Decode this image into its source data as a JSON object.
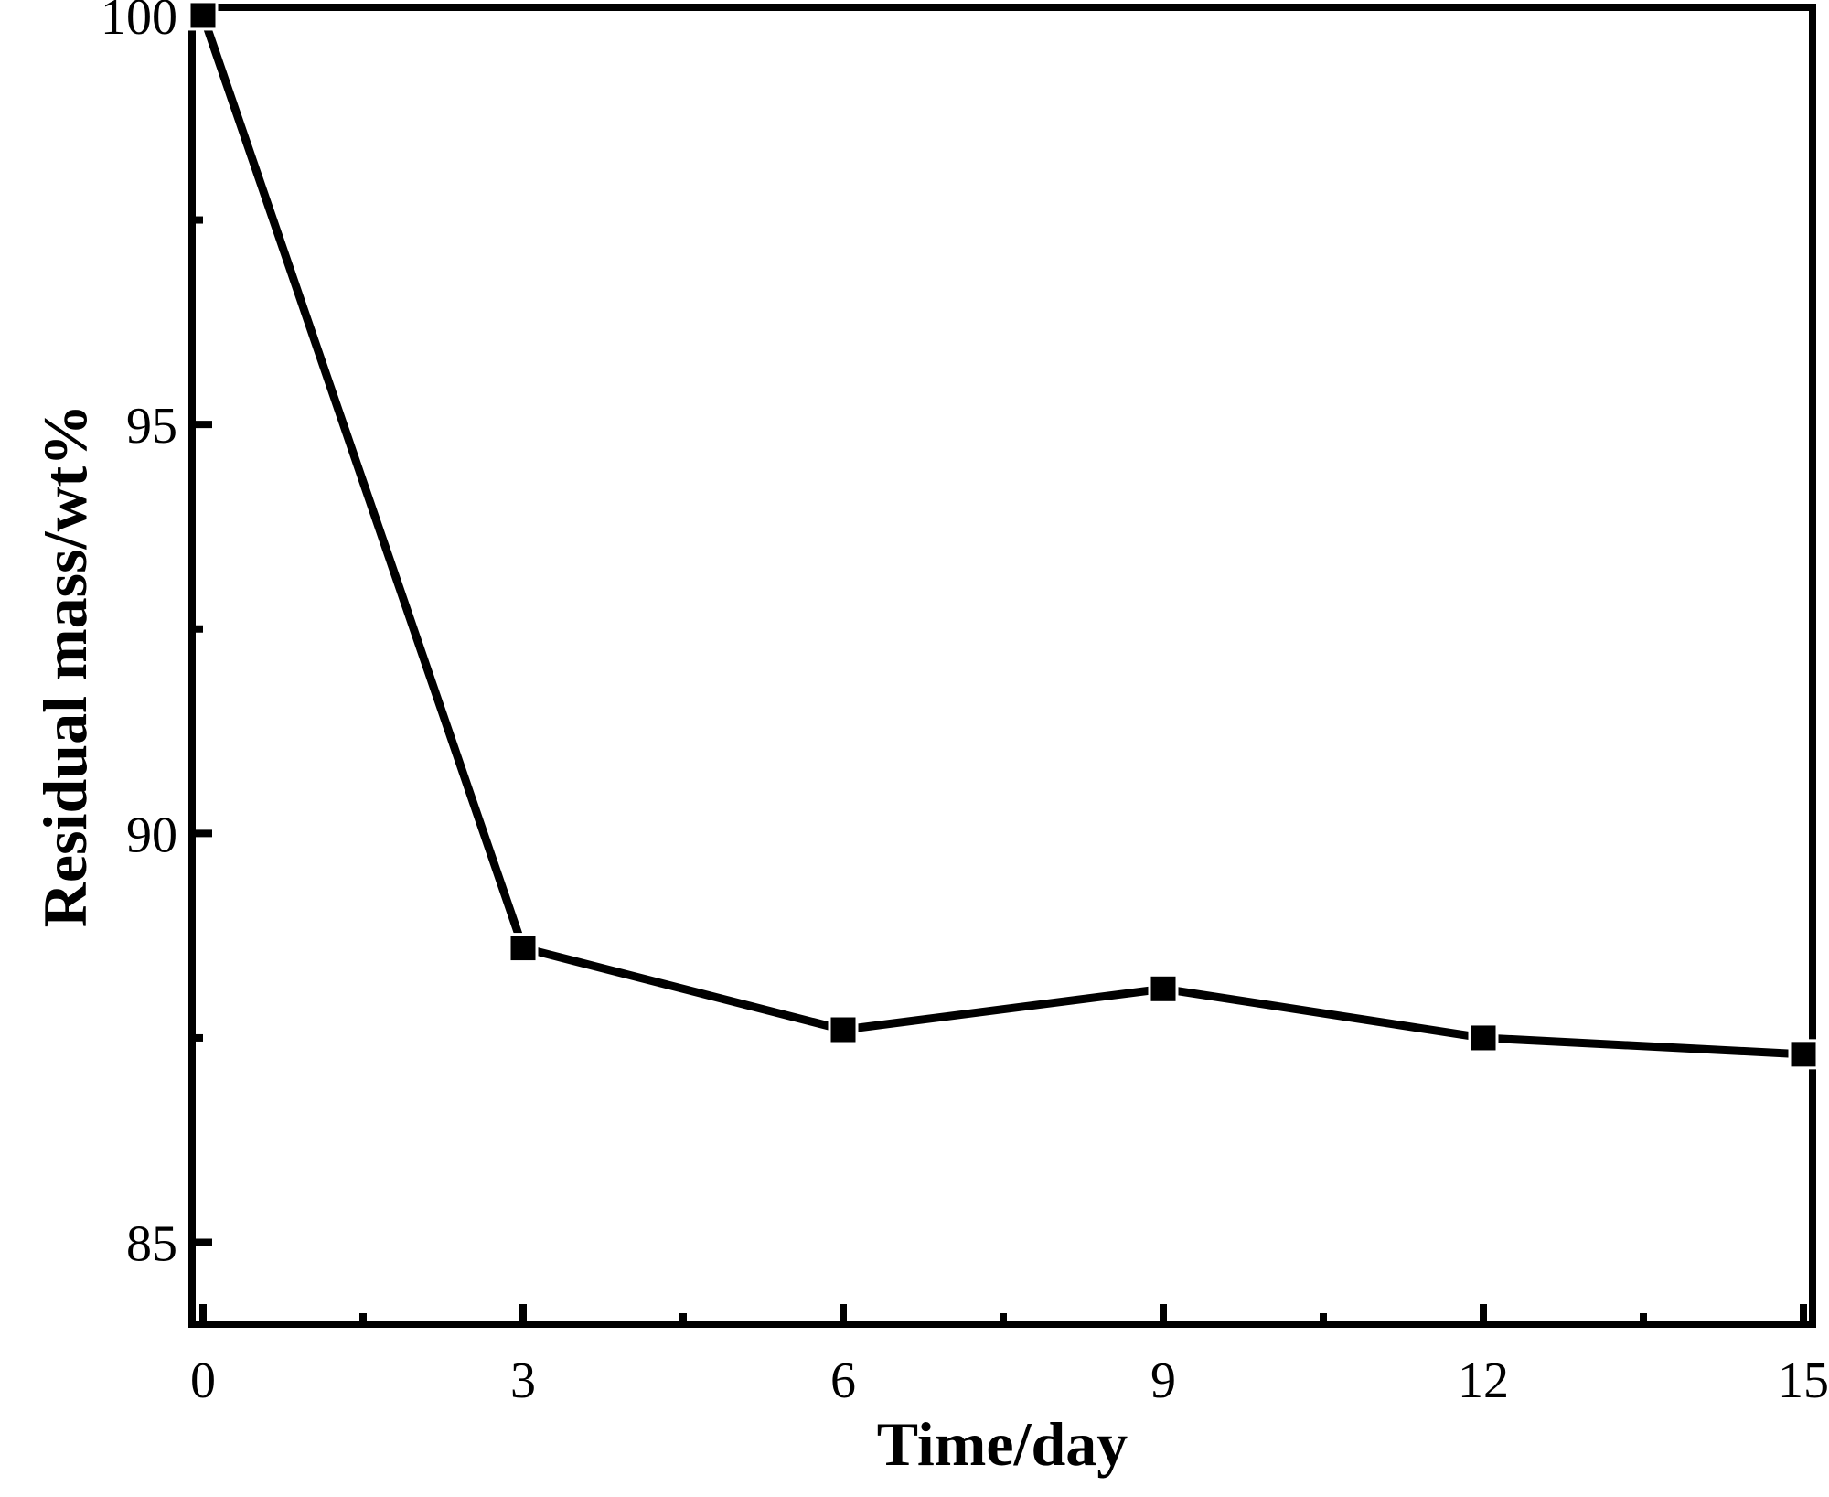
{
  "chart_data": {
    "type": "line",
    "title": "",
    "xlabel": "Time/day",
    "ylabel": "Residual mass/wt%",
    "xlim": [
      0,
      15
    ],
    "ylim": [
      84,
      100.1
    ],
    "x_ticks": [
      0,
      3,
      6,
      9,
      12,
      15
    ],
    "x_tick_labels": [
      "0",
      "3",
      "6",
      "9",
      "12",
      "15"
    ],
    "x_minor_ticks": [
      1.5,
      4.5,
      7.5,
      10.5,
      13.5
    ],
    "y_ticks": [
      85,
      90,
      95,
      100
    ],
    "y_tick_labels": [
      "85",
      "90",
      "95",
      "100"
    ],
    "y_minor_ticks": [
      87.5,
      92.5,
      97.5
    ],
    "grid": false,
    "legend": "none",
    "line_color": "#000000",
    "marker": "square",
    "series": [
      {
        "x": [
          0,
          3,
          6,
          9,
          12,
          15
        ],
        "values": [
          100,
          88.6,
          87.6,
          88.1,
          87.5,
          87.3
        ]
      }
    ]
  }
}
